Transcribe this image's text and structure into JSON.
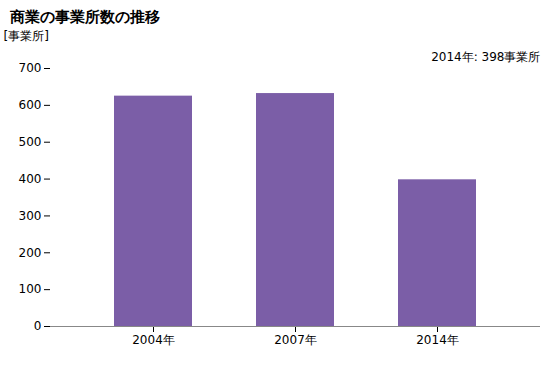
{
  "chart_data": {
    "type": "bar",
    "title": "商業の事業所数の推移",
    "ylabel": "[事業所]",
    "categories": [
      "2004年",
      "2007年",
      "2014年"
    ],
    "values": [
      625,
      632,
      398
    ],
    "color": "#7B5EA7",
    "ylim": [
      0,
      700
    ],
    "yticks": [
      0,
      100,
      200,
      300,
      400,
      500,
      600,
      700
    ],
    "annotation": "2014年: 398事業所",
    "grid": false
  }
}
